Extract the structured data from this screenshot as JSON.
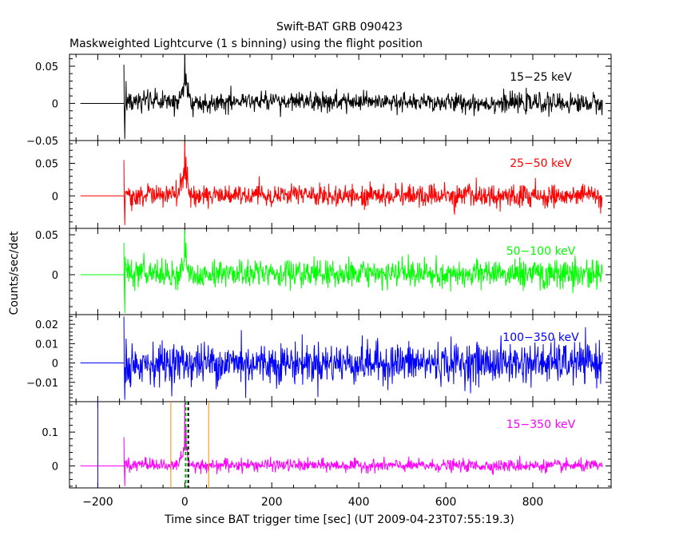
{
  "figure": {
    "title": "Swift-BAT GRB 090423",
    "subtitle": "Maskweighted Lightcurve (1 s binning) using the flight position",
    "ylabel": "Counts/sec/det",
    "xlabel": "Time since BAT trigger time [sec] (UT 2009-04-23T07:55:19.3)"
  },
  "chart_data": [
    {
      "type": "line",
      "band_label": "15−25 keV",
      "color": "#000000",
      "ylim": [
        -0.05,
        0.066
      ],
      "yticks": [
        {
          "v": -0.05,
          "label": "−0.05"
        },
        {
          "v": 0,
          "label": "0"
        },
        {
          "v": 0.05,
          "label": "0.05"
        }
      ],
      "yminor": 0.01,
      "noise": 0.0065,
      "spikes": [
        {
          "x": -140,
          "y": 0.052
        },
        {
          "x": -138,
          "y": -0.048
        },
        {
          "x": -135,
          "y": 0.03
        },
        {
          "x": 0,
          "y": 0.066
        },
        {
          "x": 3,
          "y": 0.04
        },
        {
          "x": 8,
          "y": 0.028
        }
      ],
      "series": [
        {
          "x": [
            -240,
            -140
          ],
          "y": [
            0,
            0
          ]
        },
        {
          "x": [
            -140,
            -120,
            -100,
            -50,
            -20,
            -5,
            0,
            5,
            10,
            20,
            100,
            400,
            960
          ],
          "y": [
            0.005,
            0.0,
            0.004,
            0.002,
            0.003,
            0.015,
            0.03,
            0.022,
            0.005,
            0.0,
            0.003,
            0.001,
            0.0
          ]
        }
      ]
    },
    {
      "type": "line",
      "band_label": "25−50 keV",
      "color": "#ff0000",
      "ylim": [
        -0.05,
        0.085
      ],
      "yticks": [
        {
          "v": 0,
          "label": "0"
        },
        {
          "v": 0.05,
          "label": "0.05"
        }
      ],
      "yminor": 0.01,
      "noise": 0.0085,
      "spikes": [
        {
          "x": -140,
          "y": 0.055
        },
        {
          "x": -138,
          "y": -0.045
        },
        {
          "x": 0,
          "y": 0.082
        },
        {
          "x": 3,
          "y": 0.06
        },
        {
          "x": 6,
          "y": 0.045
        }
      ],
      "series": [
        {
          "x": [
            -240,
            -140
          ],
          "y": [
            0,
            0
          ]
        },
        {
          "x": [
            -140,
            -120,
            -100,
            -50,
            -20,
            -5,
            0,
            5,
            10,
            20,
            100,
            400,
            960
          ],
          "y": [
            0.002,
            0.0,
            0.001,
            0.0,
            0.0,
            0.02,
            0.035,
            0.025,
            0.006,
            0.0,
            0.001,
            0.0,
            0.0
          ]
        }
      ]
    },
    {
      "type": "line",
      "band_label": "50−100 keV",
      "color": "#00ff00",
      "ylim": [
        -0.05,
        0.058
      ],
      "yticks": [
        {
          "v": 0,
          "label": "0"
        },
        {
          "v": 0.05,
          "label": "0.05"
        }
      ],
      "yminor": 0.01,
      "noise": 0.0085,
      "spikes": [
        {
          "x": -140,
          "y": 0.04
        },
        {
          "x": -138,
          "y": -0.048
        },
        {
          "x": 0,
          "y": 0.056
        },
        {
          "x": 3,
          "y": 0.04
        },
        {
          "x": 770,
          "y": 0.022
        }
      ],
      "series": [
        {
          "x": [
            -240,
            -140
          ],
          "y": [
            0,
            0
          ]
        },
        {
          "x": [
            -140,
            -120,
            -100,
            -50,
            -20,
            -5,
            0,
            5,
            10,
            20,
            100,
            400,
            960
          ],
          "y": [
            0.006,
            0.002,
            0.002,
            0.0,
            0.0,
            0.01,
            0.025,
            0.015,
            0.004,
            0.0,
            0.001,
            0.0,
            0.002
          ]
        }
      ]
    },
    {
      "type": "line",
      "band_label": "100−350 keV",
      "color": "#0000ff",
      "ylim": [
        -0.02,
        0.025
      ],
      "yticks": [
        {
          "v": -0.01,
          "label": "−0.01"
        },
        {
          "v": 0,
          "label": "0"
        },
        {
          "v": 0.01,
          "label": "0.01"
        },
        {
          "v": 0.02,
          "label": "0.02"
        }
      ],
      "yminor": 0.002,
      "noise": 0.0052,
      "spikes": [
        {
          "x": -140,
          "y": 0.024
        },
        {
          "x": -138,
          "y": -0.019
        },
        {
          "x": 140,
          "y": -0.018
        },
        {
          "x": 130,
          "y": 0.017
        }
      ],
      "series": [
        {
          "x": [
            -240,
            -140
          ],
          "y": [
            0,
            0
          ]
        },
        {
          "x": [
            -140,
            960
          ],
          "y": [
            0.0,
            0.0
          ]
        }
      ]
    },
    {
      "type": "line",
      "band_label": "15−350 keV",
      "color": "#ff00ff",
      "ylim": [
        -0.065,
        0.19
      ],
      "yticks": [
        {
          "v": 0,
          "label": "0"
        },
        {
          "v": 0.1,
          "label": "0.1"
        }
      ],
      "yminor": 0.02,
      "noise": 0.009,
      "spikes": [
        {
          "x": -140,
          "y": 0.085
        },
        {
          "x": -138,
          "y": -0.06
        },
        {
          "x": 0,
          "y": 0.19
        },
        {
          "x": 3,
          "y": 0.12
        },
        {
          "x": 770,
          "y": 0.03
        }
      ],
      "series": [
        {
          "x": [
            -240,
            -140
          ],
          "y": [
            0,
            0
          ]
        },
        {
          "x": [
            -140,
            -120,
            -100,
            -50,
            -20,
            -5,
            0,
            5,
            10,
            20,
            100,
            400,
            960
          ],
          "y": [
            0.01,
            0.005,
            0.004,
            0.002,
            0.003,
            0.03,
            0.06,
            0.04,
            0.01,
            0.0,
            0.003,
            0.001,
            0.0
          ]
        }
      ],
      "markers": [
        {
          "x": -200,
          "color": "#0000ff",
          "dash": false
        },
        {
          "x": -32,
          "color": "#ff8c00",
          "dash": false
        },
        {
          "x": 55,
          "color": "#ff8c00",
          "dash": false
        },
        {
          "x": 2,
          "color": "#00aa00",
          "dash": true
        },
        {
          "x": 8,
          "color": "#000000",
          "dash": true
        }
      ]
    }
  ],
  "xaxis": {
    "xlim": [
      -265,
      980
    ],
    "ticks": [
      {
        "v": -200,
        "label": "−200"
      },
      {
        "v": 0,
        "label": "0"
      },
      {
        "v": 200,
        "label": "200"
      },
      {
        "v": 400,
        "label": "400"
      },
      {
        "v": 600,
        "label": "600"
      },
      {
        "v": 800,
        "label": "800"
      }
    ],
    "minor": 50
  }
}
